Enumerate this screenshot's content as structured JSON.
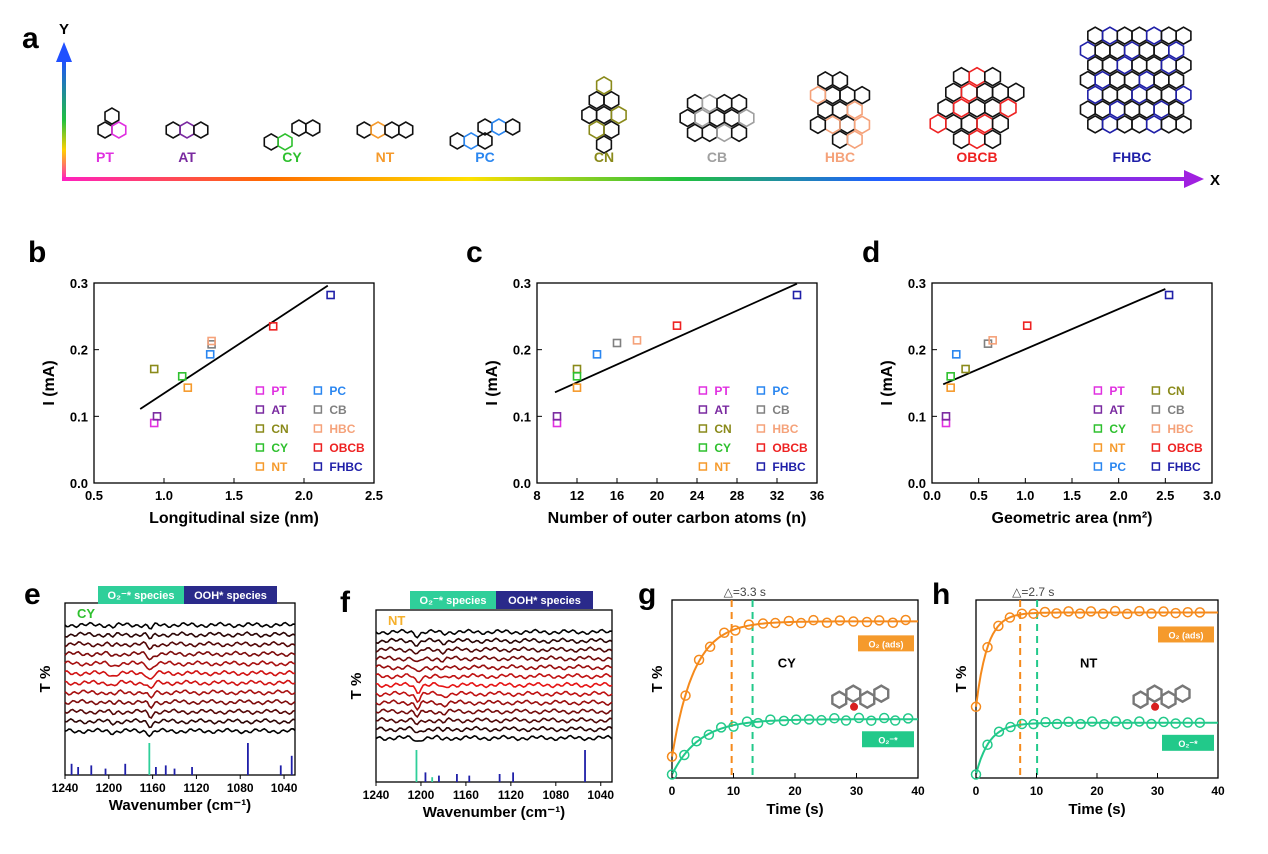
{
  "panel_a": {
    "letter": "a",
    "y_axis_label": "Y",
    "x_axis_label": "X",
    "molecules": [
      {
        "label": "PT",
        "color": "#e030e0"
      },
      {
        "label": "AT",
        "color": "#7a2aa0"
      },
      {
        "label": "CY",
        "color": "#2ec02e"
      },
      {
        "label": "NT",
        "color": "#f59a2c"
      },
      {
        "label": "PC",
        "color": "#2a86f0"
      },
      {
        "label": "CN",
        "color": "#8a8a1a"
      },
      {
        "label": "CB",
        "color": "#a0a0a0"
      },
      {
        "label": "HBC",
        "color": "#f5a27a"
      },
      {
        "label": "OBCB",
        "color": "#ee2222"
      },
      {
        "label": "FHBC",
        "color": "#1f1fa8"
      }
    ]
  },
  "chart_data": [
    {
      "panel": "b",
      "type": "scatter",
      "xlabel": "Longitudinal size (nm)",
      "ylabel": "I (mA)",
      "xlim": [
        0.5,
        2.5
      ],
      "ylim": [
        0.0,
        0.3
      ],
      "xticks": [
        "0.5",
        "1.0",
        "1.5",
        "2.0",
        "2.5"
      ],
      "yticks": [
        "0.0",
        "0.1",
        "0.2",
        "0.3"
      ],
      "points": [
        {
          "name": "PT",
          "x": 0.93,
          "y": 0.09,
          "color": "#e030e0"
        },
        {
          "name": "AT",
          "x": 0.95,
          "y": 0.1,
          "color": "#7a2aa0"
        },
        {
          "name": "CN",
          "x": 0.93,
          "y": 0.171,
          "color": "#8a8a1a"
        },
        {
          "name": "CY",
          "x": 1.13,
          "y": 0.16,
          "color": "#2ec02e"
        },
        {
          "name": "NT",
          "x": 1.17,
          "y": 0.143,
          "color": "#f59a2c"
        },
        {
          "name": "PC",
          "x": 1.33,
          "y": 0.193,
          "color": "#2a86f0"
        },
        {
          "name": "CB",
          "x": 1.34,
          "y": 0.208,
          "color": "#808080"
        },
        {
          "name": "HBC",
          "x": 1.34,
          "y": 0.213,
          "color": "#f5a27a"
        },
        {
          "name": "OBCB",
          "x": 1.78,
          "y": 0.235,
          "color": "#ee2222"
        },
        {
          "name": "FHBC",
          "x": 2.19,
          "y": 0.282,
          "color": "#1f1fa8"
        }
      ],
      "fit": [
        [
          0.83,
          0.111
        ],
        [
          2.17,
          0.296
        ]
      ],
      "legend": [
        [
          "PT",
          "PC"
        ],
        [
          "AT",
          "CB"
        ],
        [
          "CN",
          "HBC"
        ],
        [
          "CY",
          "OBCB"
        ],
        [
          "NT",
          "FHBC"
        ]
      ]
    },
    {
      "panel": "c",
      "type": "scatter",
      "xlabel": "Number of outer carbon atoms (n)",
      "ylabel": "I (mA)",
      "xlim": [
        8,
        36
      ],
      "ylim": [
        0.0,
        0.3
      ],
      "xticks": [
        "8",
        "12",
        "16",
        "20",
        "24",
        "28",
        "32",
        "36"
      ],
      "yticks": [
        "0.0",
        "0.1",
        "0.2",
        "0.3"
      ],
      "points": [
        {
          "name": "PT",
          "x": 10,
          "y": 0.09,
          "color": "#e030e0"
        },
        {
          "name": "AT",
          "x": 10,
          "y": 0.1,
          "color": "#7a2aa0"
        },
        {
          "name": "CN",
          "x": 12,
          "y": 0.171,
          "color": "#8a8a1a"
        },
        {
          "name": "CY",
          "x": 12,
          "y": 0.16,
          "color": "#2ec02e"
        },
        {
          "name": "NT",
          "x": 12,
          "y": 0.143,
          "color": "#f59a2c"
        },
        {
          "name": "PC",
          "x": 14,
          "y": 0.193,
          "color": "#2a86f0"
        },
        {
          "name": "CB",
          "x": 16,
          "y": 0.21,
          "color": "#808080"
        },
        {
          "name": "HBC",
          "x": 18,
          "y": 0.214,
          "color": "#f5a27a"
        },
        {
          "name": "OBCB",
          "x": 22,
          "y": 0.236,
          "color": "#ee2222"
        },
        {
          "name": "FHBC",
          "x": 34,
          "y": 0.282,
          "color": "#1f1fa8"
        }
      ],
      "fit": [
        [
          9.8,
          0.136
        ],
        [
          34,
          0.299
        ]
      ],
      "legend": [
        [
          "PT",
          "PC"
        ],
        [
          "AT",
          "CB"
        ],
        [
          "CN",
          "HBC"
        ],
        [
          "CY",
          "OBCB"
        ],
        [
          "NT",
          "FHBC"
        ]
      ]
    },
    {
      "panel": "d",
      "type": "scatter",
      "xlabel": "Geometric area (nm²)",
      "ylabel": "I (mA)",
      "xlim": [
        0.0,
        3.0
      ],
      "ylim": [
        0.0,
        0.3
      ],
      "xticks": [
        "0.0",
        "0.5",
        "1.0",
        "1.5",
        "2.0",
        "2.5",
        "3.0"
      ],
      "yticks": [
        "0.0",
        "0.1",
        "0.2",
        "0.3"
      ],
      "points": [
        {
          "name": "PT",
          "x": 0.15,
          "y": 0.09,
          "color": "#e030e0"
        },
        {
          "name": "AT",
          "x": 0.15,
          "y": 0.1,
          "color": "#7a2aa0"
        },
        {
          "name": "CN",
          "x": 0.36,
          "y": 0.171,
          "color": "#8a8a1a"
        },
        {
          "name": "CY",
          "x": 0.2,
          "y": 0.16,
          "color": "#2ec02e"
        },
        {
          "name": "NT",
          "x": 0.2,
          "y": 0.143,
          "color": "#f59a2c"
        },
        {
          "name": "PC",
          "x": 0.26,
          "y": 0.193,
          "color": "#2a86f0"
        },
        {
          "name": "CB",
          "x": 0.6,
          "y": 0.209,
          "color": "#808080"
        },
        {
          "name": "HBC",
          "x": 0.65,
          "y": 0.214,
          "color": "#f5a27a"
        },
        {
          "name": "OBCB",
          "x": 1.02,
          "y": 0.236,
          "color": "#ee2222"
        },
        {
          "name": "FHBC",
          "x": 2.54,
          "y": 0.282,
          "color": "#1f1fa8"
        }
      ],
      "fit": [
        [
          0.12,
          0.148
        ],
        [
          2.5,
          0.291
        ]
      ],
      "legend": [
        [
          "PT",
          "CN"
        ],
        [
          "AT",
          "CB"
        ],
        [
          "CY",
          "HBC"
        ],
        [
          "NT",
          "OBCB"
        ],
        [
          "PC",
          "FHBC"
        ]
      ]
    },
    {
      "panel": "e",
      "type": "line",
      "tag": "CY",
      "tag_color": "#2ec02e",
      "xlabel": "Wavenumber (cm⁻¹)",
      "ylabel": "T %",
      "xlim": [
        1240,
        1030
      ],
      "xticks": [
        "1240",
        "1200",
        "1160",
        "1120",
        "1080",
        "1040"
      ],
      "bar_labels": [
        "O₂⁻* species",
        "OOH* species"
      ],
      "n_traces": 12,
      "dip_positions": [
        1162,
        1196
      ],
      "ref_lines": [
        {
          "x": 1234,
          "h": 0.35,
          "c": "#1f1fa8"
        },
        {
          "x": 1228,
          "h": 0.25,
          "c": "#1f1fa8"
        },
        {
          "x": 1216,
          "h": 0.3,
          "c": "#1f1fa8"
        },
        {
          "x": 1203,
          "h": 0.2,
          "c": "#1f1fa8"
        },
        {
          "x": 1185,
          "h": 0.35,
          "c": "#1f1fa8"
        },
        {
          "x": 1163,
          "h": 1.0,
          "c": "#2fcf9a"
        },
        {
          "x": 1157,
          "h": 0.25,
          "c": "#1f1fa8"
        },
        {
          "x": 1148,
          "h": 0.3,
          "c": "#1f1fa8"
        },
        {
          "x": 1140,
          "h": 0.2,
          "c": "#1f1fa8"
        },
        {
          "x": 1124,
          "h": 0.25,
          "c": "#1f1fa8"
        },
        {
          "x": 1073,
          "h": 1.0,
          "c": "#1f1fa8"
        },
        {
          "x": 1043,
          "h": 0.3,
          "c": "#1f1fa8"
        },
        {
          "x": 1033,
          "h": 0.6,
          "c": "#1f1fa8"
        }
      ]
    },
    {
      "panel": "f",
      "type": "line",
      "tag": "NT",
      "tag_color": "#f5b02c",
      "xlabel": "Wavenumber (cm⁻¹)",
      "ylabel": "T %",
      "xlim": [
        1240,
        1030
      ],
      "xticks": [
        "1240",
        "1200",
        "1160",
        "1120",
        "1080",
        "1040"
      ],
      "bar_labels": [
        "O₂⁻* species",
        "OOH* species"
      ],
      "n_traces": 13,
      "dip_positions": [
        1203,
        1180
      ],
      "ref_lines": [
        {
          "x": 1204,
          "h": 1.0,
          "c": "#2fcf9a"
        },
        {
          "x": 1196,
          "h": 0.3,
          "c": "#1f1fa8"
        },
        {
          "x": 1190,
          "h": 0.15,
          "c": "#2fcf9a"
        },
        {
          "x": 1184,
          "h": 0.2,
          "c": "#1f1fa8"
        },
        {
          "x": 1168,
          "h": 0.25,
          "c": "#1f1fa8"
        },
        {
          "x": 1157,
          "h": 0.2,
          "c": "#1f1fa8"
        },
        {
          "x": 1130,
          "h": 0.25,
          "c": "#1f1fa8"
        },
        {
          "x": 1118,
          "h": 0.3,
          "c": "#1f1fa8"
        },
        {
          "x": 1054,
          "h": 1.0,
          "c": "#1f1fa8"
        }
      ]
    },
    {
      "panel": "g",
      "type": "line",
      "tag": "CY",
      "xlabel": "Time (s)",
      "ylabel": "T %",
      "xlim": [
        0,
        40
      ],
      "xticks": [
        "0",
        "10",
        "20",
        "30",
        "40"
      ],
      "delta_label": "△=3.3 s",
      "vlines": [
        {
          "x": 9.7,
          "color": "#f58a1c"
        },
        {
          "x": 13.1,
          "color": "#22c98a"
        }
      ],
      "series": [
        {
          "name": "O₂ (ads)",
          "color": "#f58a1c",
          "ymax": 0.88,
          "y0": 0.12,
          "tau": 3.6,
          "xs": [
            0,
            2.2,
            4.4,
            6.2,
            8.5,
            10.3,
            12.5,
            14.8,
            16.8,
            19,
            21,
            23,
            25.2,
            27.3,
            29.5,
            31.7,
            33.7,
            35.9,
            38
          ]
        },
        {
          "name": "O₂⁻*",
          "color": "#22c98a",
          "ymax": 0.33,
          "y0": 0.02,
          "tau": 4.5,
          "xs": [
            0,
            2,
            4,
            6,
            8,
            10,
            12.2,
            14,
            16,
            18.2,
            20.2,
            22.3,
            24.3,
            26.4,
            28.3,
            30.4,
            32.4,
            34.5,
            36.3,
            38.4
          ]
        }
      ]
    },
    {
      "panel": "h",
      "type": "line",
      "tag": "NT",
      "xlabel": "Time (s)",
      "ylabel": "T %",
      "xlim": [
        0,
        40
      ],
      "xticks": [
        "0",
        "10",
        "20",
        "30",
        "40"
      ],
      "delta_label": "△=2.7 s",
      "vlines": [
        {
          "x": 7.3,
          "color": "#f58a1c"
        },
        {
          "x": 10.1,
          "color": "#22c98a"
        }
      ],
      "series": [
        {
          "name": "O₂ (ads)",
          "color": "#f58a1c",
          "ymax": 0.93,
          "y0": 0.4,
          "tau": 1.9,
          "xs": [
            0,
            1.9,
            3.7,
            5.6,
            7.6,
            9.5,
            11.4,
            13.3,
            15.3,
            17.2,
            19,
            21,
            23,
            25,
            27,
            29,
            31,
            33,
            35,
            37
          ]
        },
        {
          "name": "O₂⁻*",
          "color": "#22c98a",
          "ymax": 0.31,
          "y0": 0.02,
          "tau": 2.2,
          "xs": [
            0,
            1.9,
            3.8,
            5.7,
            7.6,
            9.5,
            11.5,
            13.4,
            15.3,
            17.3,
            19.2,
            21.2,
            23.1,
            25,
            27,
            29,
            31,
            33,
            35,
            37
          ]
        }
      ]
    }
  ]
}
